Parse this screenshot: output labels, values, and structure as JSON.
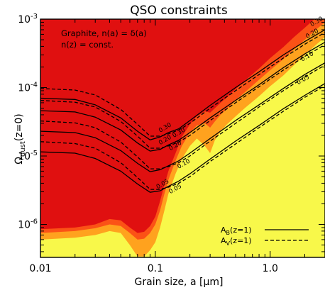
{
  "chart_data": {
    "type": "line",
    "title": "QSO constraints",
    "xlabel": "Grain size, a [μm]",
    "ylabel_main": "Ω",
    "ylabel_sub": "dust",
    "ylabel_tail": "(z=0)",
    "xscale": "log",
    "yscale": "log",
    "xlim": [
      0.01,
      3.0
    ],
    "ylim": [
      3.3e-07,
      0.001
    ],
    "grid": false,
    "legend_position": "bottom-right",
    "x_tick_labels": [
      {
        "value": 0.01,
        "label": "0.01"
      },
      {
        "value": 0.1,
        "label": "0.1"
      },
      {
        "value": 1.0,
        "label": "1.0"
      }
    ],
    "y_tick_labels": [
      {
        "value": 1e-06,
        "base": "10",
        "exp": "-6"
      },
      {
        "value": 1e-05,
        "base": "10",
        "exp": "-5"
      },
      {
        "value": 0.0001,
        "base": "10",
        "exp": "-4"
      },
      {
        "value": 0.001,
        "base": "10",
        "exp": "-3"
      }
    ],
    "annotations": [
      "Graphite, n(a) = δ(a)",
      "n(z) = const."
    ],
    "legend": [
      {
        "base": "A",
        "sub": "B",
        "tail": "(z=1)",
        "style": "solid"
      },
      {
        "base": "A",
        "sub": "V",
        "tail": "(z=1)",
        "style": "dashed"
      }
    ],
    "colors": {
      "background_fill": "#f8f84a",
      "orange": "#ffa21e",
      "red_orange": "#fb5216",
      "red": "#e01010"
    },
    "filled_regions": [
      {
        "name": "orange",
        "color": "#ffa21e",
        "x": [
          0.01,
          0.02,
          0.03,
          0.04,
          0.05,
          0.06,
          0.07,
          0.08,
          0.09,
          0.1,
          0.11,
          0.12,
          0.13,
          0.15,
          0.17,
          0.2,
          0.23,
          0.27,
          0.3,
          0.33,
          0.37,
          0.42,
          0.5,
          0.6,
          0.8,
          1.0,
          1.3,
          1.6,
          2.0,
          2.5,
          3.0
        ],
        "y": [
          6e-07,
          6.4e-07,
          7e-07,
          8e-07,
          7.5e-07,
          5e-07,
          3.4e-07,
          3.4e-07,
          4.2e-07,
          5.5e-07,
          9e-07,
          1.6e-06,
          2.8e-06,
          5.5e-06,
          9e-06,
          1.4e-05,
          1.8e-05,
          1.4e-05,
          1.1e-05,
          1.7e-05,
          2.3e-05,
          2.9e-05,
          3.8e-05,
          5e-05,
          7.5e-05,
          0.000105,
          0.00015,
          0.00021,
          0.0003,
          0.00042,
          0.00055
        ]
      },
      {
        "name": "red-orange",
        "color": "#fb5216",
        "x": [
          0.01,
          0.02,
          0.03,
          0.04,
          0.05,
          0.06,
          0.07,
          0.08,
          0.09,
          0.1,
          0.11,
          0.12,
          0.13,
          0.15,
          0.17,
          0.2,
          0.23,
          0.27,
          0.3,
          0.33,
          0.37,
          0.42,
          0.5,
          0.6,
          0.8,
          1.0,
          1.3,
          1.6,
          2.0,
          2.5,
          3.0
        ],
        "y": [
          7.5e-07,
          8e-07,
          8.8e-07,
          1e-06,
          9.5e-07,
          7.5e-07,
          6e-07,
          6.2e-07,
          7.5e-07,
          1e-06,
          1.6e-06,
          2.8e-06,
          4.5e-06,
          8.5e-06,
          1.4e-05,
          2.2e-05,
          2.8e-05,
          3e-05,
          2.6e-05,
          3.2e-05,
          4e-05,
          4.9e-05,
          6.5e-05,
          8.5e-05,
          0.00013,
          0.00018,
          0.00026,
          0.00036,
          0.0005,
          0.0007,
          0.0009
        ]
      },
      {
        "name": "red",
        "color": "#e01010",
        "x": [
          0.01,
          0.02,
          0.03,
          0.04,
          0.05,
          0.06,
          0.07,
          0.08,
          0.09,
          0.1,
          0.11,
          0.12,
          0.13,
          0.15,
          0.17,
          0.2,
          0.23,
          0.27,
          0.3,
          0.33,
          0.37,
          0.42,
          0.5,
          0.6,
          0.8,
          1.0,
          1.3,
          1.6,
          2.0,
          2.5,
          3.0
        ],
        "y": [
          8.5e-07,
          9e-07,
          1e-06,
          1.2e-06,
          1.15e-06,
          9e-07,
          7.5e-07,
          7.8e-07,
          9.5e-07,
          1.3e-06,
          2.2e-06,
          3.8e-06,
          6e-06,
          1.1e-05,
          1.9e-05,
          2.9e-05,
          3.8e-05,
          4.5e-05,
          4.3e-05,
          5e-05,
          6e-05,
          7.2e-05,
          9.5e-05,
          0.000125,
          0.00019,
          0.00027,
          0.00039,
          0.00054,
          0.00075,
          0.00105,
          0.0014
        ]
      }
    ],
    "series": [
      {
        "band": "AB",
        "level": "0.30",
        "x": [
          0.01,
          0.02,
          0.03,
          0.05,
          0.07,
          0.09,
          0.11,
          0.13,
          0.16,
          0.2,
          0.3,
          0.5,
          0.8,
          1.3,
          2.0,
          3.0
        ],
        "y": [
          7e-05,
          6.7e-05,
          5.6e-05,
          3.6e-05,
          2.3e-05,
          1.72e-05,
          1.9e-05,
          2.2e-05,
          2.5e-05,
          3.3e-05,
          5.5e-05,
          0.0001,
          0.00017,
          0.0003,
          0.00047,
          0.0007
        ]
      },
      {
        "band": "AB",
        "level": "0.20",
        "x": [
          0.01,
          0.02,
          0.03,
          0.05,
          0.07,
          0.09,
          0.11,
          0.13,
          0.16,
          0.2,
          0.3,
          0.5,
          0.8,
          1.3,
          2.0,
          3.0
        ],
        "y": [
          4.6e-05,
          4.4e-05,
          3.7e-05,
          2.4e-05,
          1.55e-05,
          1.18e-05,
          1.25e-05,
          1.45e-05,
          1.7e-05,
          2.2e-05,
          3.6e-05,
          6.5e-05,
          0.00011,
          0.000195,
          0.00031,
          0.00046
        ]
      },
      {
        "band": "AB",
        "level": "0.10",
        "x": [
          0.01,
          0.02,
          0.03,
          0.05,
          0.07,
          0.09,
          0.11,
          0.13,
          0.16,
          0.2,
          0.3,
          0.5,
          0.8,
          1.3,
          2.0,
          3.0
        ],
        "y": [
          2.3e-05,
          2.2e-05,
          1.85e-05,
          1.2e-05,
          7.8e-06,
          5.9e-06,
          6.3e-06,
          7.2e-06,
          8.5e-06,
          1.1e-05,
          1.8e-05,
          3.3e-05,
          5.6e-05,
          9.7e-05,
          0.000155,
          0.00023
        ]
      },
      {
        "band": "AB",
        "level": "0.05",
        "x": [
          0.01,
          0.02,
          0.03,
          0.05,
          0.07,
          0.09,
          0.11,
          0.13,
          0.16,
          0.2,
          0.3,
          0.5,
          0.8,
          1.3,
          2.0,
          3.0
        ],
        "y": [
          1.15e-05,
          1.1e-05,
          9.2e-06,
          6e-06,
          3.9e-06,
          2.95e-06,
          3.1e-06,
          3.6e-06,
          4.3e-06,
          5.5e-06,
          9e-06,
          1.65e-05,
          2.8e-05,
          4.9e-05,
          7.7e-05,
          0.000115
        ]
      },
      {
        "band": "AV",
        "level": "0.30",
        "x": [
          0.01,
          0.02,
          0.03,
          0.05,
          0.07,
          0.09,
          0.11,
          0.13,
          0.16,
          0.2,
          0.3,
          0.5,
          0.8,
          1.3,
          2.0,
          3.0
        ],
        "y": [
          9.7e-05,
          9.2e-05,
          7.8e-05,
          4.8e-05,
          2.9e-05,
          1.95e-05,
          1.95e-05,
          2.1e-05,
          2.4e-05,
          3e-05,
          5e-05,
          9e-05,
          0.000155,
          0.00027,
          0.00043,
          0.00064
        ]
      },
      {
        "band": "AV",
        "level": "0.20",
        "x": [
          0.01,
          0.02,
          0.03,
          0.05,
          0.07,
          0.09,
          0.11,
          0.13,
          0.16,
          0.2,
          0.3,
          0.5,
          0.8,
          1.3,
          2.0,
          3.0
        ],
        "y": [
          6.5e-05,
          6.1e-05,
          5.2e-05,
          3.2e-05,
          1.95e-05,
          1.3e-05,
          1.3e-05,
          1.4e-05,
          1.6e-05,
          2e-05,
          3.3e-05,
          6e-05,
          0.000103,
          0.00018,
          0.000285,
          0.000425
        ]
      },
      {
        "band": "AV",
        "level": "0.10",
        "x": [
          0.01,
          0.02,
          0.03,
          0.05,
          0.07,
          0.09,
          0.11,
          0.13,
          0.16,
          0.2,
          0.3,
          0.5,
          0.8,
          1.3,
          2.0,
          3.0
        ],
        "y": [
          3.25e-05,
          3.05e-05,
          2.6e-05,
          1.6e-05,
          9.7e-06,
          6.5e-06,
          6.5e-06,
          7e-06,
          8e-06,
          1e-05,
          1.65e-05,
          3e-05,
          5.2e-05,
          9e-05,
          0.000143,
          0.000213
        ]
      },
      {
        "band": "AV",
        "level": "0.05",
        "x": [
          0.01,
          0.02,
          0.03,
          0.05,
          0.07,
          0.09,
          0.11,
          0.13,
          0.16,
          0.2,
          0.3,
          0.5,
          0.8,
          1.3,
          2.0,
          3.0
        ],
        "y": [
          1.62e-05,
          1.52e-05,
          1.3e-05,
          8e-06,
          4.85e-06,
          3.25e-06,
          3.25e-06,
          3.5e-06,
          4e-06,
          5e-06,
          8.3e-06,
          1.5e-05,
          2.6e-05,
          4.5e-05,
          7.2e-05,
          0.000107
        ]
      }
    ],
    "curve_labels": [
      {
        "text": "0.30",
        "x": 2.3,
        "y": 0.00078
      },
      {
        "text": "0.20",
        "x": 2.1,
        "y": 0.00052
      },
      {
        "text": "0.10",
        "x": 1.9,
        "y": 0.00024
      },
      {
        "text": "0.05",
        "x": 1.75,
        "y": 0.00011
      },
      {
        "text": "0.30",
        "x": 0.11,
        "y": 2.2e-05
      },
      {
        "text": "0.30",
        "x": 0.145,
        "y": 1.85e-05
      },
      {
        "text": "0.20",
        "x": 0.11,
        "y": 1.45e-05
      },
      {
        "text": "0.20",
        "x": 0.135,
        "y": 1.2e-05
      },
      {
        "text": "0.10",
        "x": 0.16,
        "y": 6.5e-06
      },
      {
        "text": "0.05",
        "x": 0.105,
        "y": 3.3e-06
      },
      {
        "text": "0.05",
        "x": 0.135,
        "y": 2.8e-06
      }
    ]
  }
}
